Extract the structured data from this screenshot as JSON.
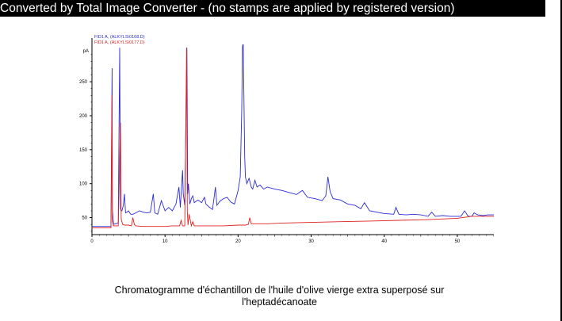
{
  "watermark": {
    "text": "Converted by Total Image Converter - (no stamps are applied by registered version)"
  },
  "caption": {
    "line1": "Chromatogramme d'échantillon de l'huile d'olive vierge extra superposé sur",
    "line2": "l'heptadécanoate"
  },
  "chart_data": {
    "type": "line",
    "ylabel": "pA",
    "xlim": [
      0,
      55
    ],
    "ylim": [
      25,
      305
    ],
    "x_ticks": [
      0,
      10,
      20,
      30,
      40,
      50
    ],
    "y_ticks": [
      50,
      100,
      150,
      200,
      250
    ],
    "grid": false,
    "legend_position": "top-left",
    "series": [
      {
        "name": "FID1 A, (ALKYLS\\0168.D)",
        "color": "#2b2bd6",
        "x": [
          0,
          2.6,
          2.75,
          2.8,
          2.95,
          3.6,
          3.8,
          3.9,
          4.0,
          4.1,
          4.3,
          4.45,
          4.6,
          4.8,
          5.0,
          5.3,
          5.6,
          6.0,
          6.5,
          7.0,
          7.5,
          8.0,
          8.4,
          8.6,
          9.0,
          9.5,
          10.0,
          10.5,
          11.0,
          11.5,
          11.9,
          12.1,
          12.4,
          12.5,
          12.7,
          13.0,
          13.1,
          13.2,
          13.4,
          13.6,
          13.8,
          14.0,
          14.5,
          15.0,
          15.4,
          15.6,
          16.0,
          16.5,
          16.9,
          17.1,
          17.5,
          18.0,
          18.5,
          19.0,
          19.5,
          20.0,
          20.3,
          20.5,
          20.6,
          20.7,
          20.9,
          21.0,
          21.2,
          21.5,
          21.8,
          22.0,
          22.3,
          22.6,
          23.0,
          23.5,
          24.0,
          25.0,
          26.0,
          27.0,
          28.0,
          28.8,
          29.5,
          30.5,
          31.5,
          32.0,
          32.3,
          32.6,
          33.0,
          34.0,
          35.0,
          36.0,
          36.8,
          37.3,
          38.0,
          39.0,
          40.0,
          41.3,
          41.6,
          42.0,
          43.0,
          44.0,
          45.0,
          46.0,
          46.5,
          47.0,
          48.0,
          49.0,
          50.0,
          50.5,
          51.0,
          51.5,
          52.0,
          52.3,
          52.8,
          53.5,
          54.2,
          55.0
        ],
        "y": [
          37,
          37,
          270,
          62,
          40,
          42,
          300,
          63,
          60,
          60,
          68,
          85,
          57,
          58,
          60,
          55,
          55,
          57,
          60,
          58,
          57,
          58,
          85,
          57,
          55,
          75,
          60,
          65,
          60,
          70,
          95,
          65,
          120,
          85,
          68,
          300,
          85,
          100,
          70,
          78,
          82,
          72,
          76,
          72,
          80,
          70,
          66,
          62,
          95,
          68,
          74,
          78,
          80,
          73,
          70,
          90,
          110,
          210,
          300,
          310,
          140,
          110,
          100,
          108,
          95,
          92,
          105,
          95,
          98,
          92,
          95,
          92,
          90,
          87,
          84,
          90,
          80,
          78,
          75,
          82,
          110,
          88,
          78,
          76,
          70,
          68,
          63,
          72,
          60,
          58,
          56,
          55,
          65,
          55,
          54,
          55,
          54,
          52,
          58,
          52,
          53,
          52,
          52,
          52,
          60,
          52,
          52,
          57,
          54,
          53,
          54,
          54
        ]
      },
      {
        "name": "FID1 A, (ALKYLS\\0177.D)",
        "color": "#e02020",
        "x": [
          0,
          2.6,
          2.75,
          2.8,
          2.95,
          3.6,
          3.9,
          4.0,
          4.2,
          4.5,
          5.0,
          5.4,
          5.6,
          5.8,
          6.0,
          7.0,
          8.0,
          9.0,
          10.0,
          11.0,
          12.0,
          12.2,
          12.4,
          12.7,
          12.95,
          13.05,
          13.15,
          13.3,
          13.6,
          13.8,
          14.0,
          14.5,
          15.0,
          16.0,
          18.0,
          20.0,
          21.0,
          21.4,
          21.6,
          21.8,
          22.2,
          24.0,
          26.0,
          30.0,
          34.0,
          38.0,
          42.0,
          46.0,
          50.0,
          52.0,
          55.0
        ],
        "y": [
          35,
          35,
          230,
          45,
          38,
          38,
          190,
          48,
          40,
          39,
          39,
          38,
          50,
          40,
          38,
          37,
          37,
          37,
          37,
          38,
          38,
          46,
          38,
          38,
          300,
          60,
          39,
          55,
          38,
          44,
          38,
          38,
          38,
          38,
          38,
          39,
          39,
          40,
          50,
          41,
          41,
          41,
          42,
          43,
          44,
          45,
          46,
          47,
          49,
          52,
          52
        ]
      }
    ]
  }
}
